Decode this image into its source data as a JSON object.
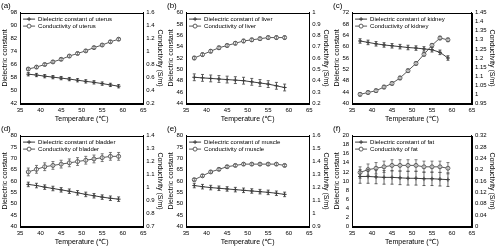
{
  "chart_data": [
    {
      "type": "line",
      "title": "(a)",
      "x_label": "Temperature (℃)",
      "y_label": "Dielectric constant",
      "y2_label": "Conductivity (S/m)",
      "x": [
        37,
        39,
        41,
        43,
        45,
        47,
        49,
        51,
        53,
        55,
        57,
        59
      ],
      "xlim": [
        35,
        65
      ],
      "xticks": [
        35,
        40,
        45,
        50,
        55,
        60,
        65
      ],
      "ylim": [
        42,
        98
      ],
      "yticks": [
        42,
        50,
        58,
        66,
        74,
        82,
        90,
        98
      ],
      "y2lim": [
        0.2,
        1.6
      ],
      "y2ticks": [
        0.2,
        0.4,
        0.6,
        0.8,
        1,
        1.2,
        1.4,
        1.6
      ],
      "grid": false,
      "legend": "upper-left",
      "series": [
        {
          "name": "Dielectric constant of uterus",
          "color": "#3c3c3c",
          "marker": "cross",
          "line_style": "solid",
          "values": [
            60,
            59.5,
            58.8,
            58.2,
            57.6,
            57,
            56.3,
            55.6,
            55,
            54.2,
            53.4,
            52.6
          ],
          "errors": [
            1,
            1,
            1,
            1,
            1,
            1,
            1,
            1,
            1,
            1,
            1,
            1
          ]
        },
        {
          "name": "Conductivity of uterus",
          "color": "#5a5a5a",
          "marker": "circle",
          "line_style": "solid",
          "axis": "y2",
          "values": [
            0.73,
            0.76,
            0.8,
            0.84,
            0.88,
            0.93,
            0.97,
            1.01,
            1.06,
            1.1,
            1.15,
            1.19
          ],
          "errors": [
            0.02,
            0.02,
            0.02,
            0.02,
            0.02,
            0.02,
            0.02,
            0.02,
            0.02,
            0.02,
            0.02,
            0.02
          ]
        }
      ]
    },
    {
      "type": "line",
      "title": "(b)",
      "x_label": "Temperature (℃)",
      "y_label": "Dielectric constant",
      "y2_label": "Conductivity (S/m)",
      "x": [
        37,
        39,
        41,
        43,
        45,
        47,
        49,
        51,
        53,
        55,
        57,
        59
      ],
      "xlim": [
        35,
        65
      ],
      "xticks": [
        35,
        40,
        45,
        50,
        55,
        60,
        65
      ],
      "ylim": [
        44,
        60
      ],
      "yticks": [
        44,
        46,
        48,
        50,
        52,
        54,
        56,
        58,
        60
      ],
      "y2lim": [
        0.2,
        1
      ],
      "y2ticks": [
        0.2,
        0.3,
        0.4,
        0.5,
        0.6,
        0.7,
        0.8,
        0.9,
        1
      ],
      "grid": false,
      "legend": "upper-left",
      "series": [
        {
          "name": "Dielectric constant of liver",
          "color": "#3c3c3c",
          "marker": "cross",
          "line_style": "solid",
          "values": [
            48.6,
            48.5,
            48.4,
            48.3,
            48.2,
            48.1,
            48,
            47.8,
            47.6,
            47.4,
            47.1,
            46.8
          ],
          "errors": [
            0.6,
            0.6,
            0.6,
            0.6,
            0.6,
            0.6,
            0.6,
            0.6,
            0.6,
            0.6,
            0.6,
            0.6
          ]
        },
        {
          "name": "Conductivity of liver",
          "color": "#5a5a5a",
          "marker": "circle",
          "line_style": "solid",
          "axis": "y2",
          "values": [
            0.6,
            0.63,
            0.66,
            0.69,
            0.71,
            0.73,
            0.75,
            0.76,
            0.77,
            0.78,
            0.78,
            0.78
          ],
          "errors": [
            0.015,
            0.015,
            0.015,
            0.015,
            0.015,
            0.015,
            0.015,
            0.015,
            0.015,
            0.015,
            0.015,
            0.015
          ]
        }
      ]
    },
    {
      "type": "line",
      "title": "(c)",
      "x_label": "Temperature (℃)",
      "y_label": "Dielectric constant",
      "y2_label": "Conductivity (S/m)",
      "x": [
        37,
        39,
        41,
        43,
        45,
        47,
        49,
        51,
        53,
        55,
        57,
        59
      ],
      "xlim": [
        35,
        65
      ],
      "xticks": [
        35,
        40,
        45,
        50,
        55,
        60,
        65
      ],
      "ylim": [
        40,
        72
      ],
      "yticks": [
        40,
        44,
        48,
        52,
        56,
        60,
        64,
        68,
        72
      ],
      "y2lim": [
        0.95,
        1.45
      ],
      "y2ticks": [
        0.95,
        1,
        1.05,
        1.1,
        1.15,
        1.2,
        1.25,
        1.3,
        1.35,
        1.4,
        1.45
      ],
      "grid": false,
      "legend": "upper-left",
      "series": [
        {
          "name": "Dielectric constant of kidney",
          "color": "#3c3c3c",
          "marker": "cross",
          "line_style": "solid",
          "values": [
            62,
            61.5,
            61,
            60.6,
            60.3,
            60,
            59.7,
            59.5,
            59.2,
            58.9,
            58,
            56
          ],
          "errors": [
            0.8,
            0.8,
            0.8,
            0.8,
            0.8,
            0.8,
            0.8,
            0.8,
            0.8,
            0.8,
            0.8,
            0.8
          ]
        },
        {
          "name": "Conductivity of kidney",
          "color": "#5a5a5a",
          "marker": "circle",
          "line_style": "solid",
          "axis": "y2",
          "values": [
            1,
            1.01,
            1.02,
            1.04,
            1.06,
            1.09,
            1.13,
            1.17,
            1.22,
            1.27,
            1.31,
            1.3
          ],
          "errors": [
            0.01,
            0.01,
            0.01,
            0.01,
            0.01,
            0.01,
            0.01,
            0.01,
            0.01,
            0.01,
            0.01,
            0.01
          ]
        }
      ]
    },
    {
      "type": "line",
      "title": "(d)",
      "x_label": "Temperature (℃)",
      "y_label": "Dielectric constant",
      "y2_label": "Conductivity (S/m)",
      "x": [
        37,
        39,
        41,
        43,
        45,
        47,
        49,
        51,
        53,
        55,
        57,
        59
      ],
      "xlim": [
        35,
        65
      ],
      "xticks": [
        35,
        40,
        45,
        50,
        55,
        60,
        65
      ],
      "ylim": [
        40,
        80
      ],
      "yticks": [
        40,
        45,
        50,
        55,
        60,
        65,
        70,
        75,
        80
      ],
      "y2lim": [
        0.7,
        1.4
      ],
      "y2ticks": [
        0.7,
        0.8,
        0.9,
        1,
        1.1,
        1.2,
        1.3,
        1.4
      ],
      "grid": false,
      "legend": "upper-left",
      "series": [
        {
          "name": "Dielectric constant of bladder",
          "color": "#3c3c3c",
          "marker": "cross",
          "line_style": "solid",
          "values": [
            58.5,
            58,
            57.3,
            56.7,
            56.1,
            55.5,
            54.8,
            54.1,
            53.5,
            52.9,
            52.4,
            52
          ],
          "errors": [
            1,
            1,
            1,
            1,
            1,
            1,
            1,
            1,
            1,
            1,
            1,
            1
          ]
        },
        {
          "name": "Conductivity of bladder",
          "color": "#5a5a5a",
          "marker": "circle",
          "line_style": "solid",
          "axis": "y2",
          "values": [
            1.12,
            1.14,
            1.16,
            1.17,
            1.18,
            1.19,
            1.2,
            1.21,
            1.22,
            1.23,
            1.24,
            1.24
          ],
          "errors": [
            0.03,
            0.03,
            0.03,
            0.03,
            0.03,
            0.03,
            0.03,
            0.03,
            0.03,
            0.03,
            0.03,
            0.03
          ]
        }
      ]
    },
    {
      "type": "line",
      "title": "(e)",
      "x_label": "Temperature (℃)",
      "y_label": "Dielectric constant",
      "y2_label": "Conductivity (S/m)",
      "x": [
        37,
        39,
        41,
        43,
        45,
        47,
        49,
        51,
        53,
        55,
        57,
        59
      ],
      "xlim": [
        35,
        65
      ],
      "xticks": [
        35,
        40,
        45,
        50,
        55,
        60,
        65
      ],
      "ylim": [
        40,
        80
      ],
      "yticks": [
        40,
        45,
        50,
        55,
        60,
        65,
        70,
        75,
        80
      ],
      "y2lim": [
        0.9,
        1.6
      ],
      "y2ticks": [
        0.9,
        1,
        1.1,
        1.2,
        1.3,
        1.4,
        1.5,
        1.6
      ],
      "grid": false,
      "legend": "upper-left",
      "series": [
        {
          "name": "Dielectric constant of muscle",
          "color": "#3c3c3c",
          "marker": "cross",
          "line_style": "solid",
          "values": [
            58,
            57.5,
            57.1,
            56.8,
            56.5,
            56.2,
            55.9,
            55.6,
            55.3,
            55,
            54.6,
            54.1
          ],
          "errors": [
            1,
            1,
            1,
            1,
            1,
            1,
            1,
            1,
            1,
            1,
            1,
            1
          ]
        },
        {
          "name": "Conductivity of muscle",
          "color": "#5a5a5a",
          "marker": "circle",
          "line_style": "solid",
          "axis": "y2",
          "values": [
            1.26,
            1.29,
            1.32,
            1.34,
            1.36,
            1.37,
            1.38,
            1.38,
            1.38,
            1.38,
            1.38,
            1.37
          ],
          "errors": [
            0.01,
            0.01,
            0.01,
            0.01,
            0.01,
            0.01,
            0.01,
            0.01,
            0.01,
            0.01,
            0.01,
            0.01
          ]
        }
      ]
    },
    {
      "type": "line",
      "title": "(f)",
      "x_label": "Temperature (℃)",
      "y_label": "Dielectric constant",
      "y2_label": "Conductivity (S/m)",
      "x": [
        37,
        39,
        41,
        43,
        45,
        47,
        49,
        51,
        53,
        55,
        57,
        59
      ],
      "xlim": [
        35,
        65
      ],
      "xticks": [
        35,
        40,
        45,
        50,
        55,
        60,
        65
      ],
      "ylim": [
        0,
        20
      ],
      "yticks": [
        0,
        2,
        4,
        6,
        8,
        10,
        12,
        14,
        16,
        18,
        20
      ],
      "y2lim": [
        0,
        0.32
      ],
      "y2ticks": [
        0,
        0.04,
        0.08,
        0.12,
        0.16,
        0.2,
        0.24,
        0.28,
        0.32
      ],
      "grid": false,
      "legend": "upper-left",
      "series": [
        {
          "name": "Dielectric constant of fat",
          "color": "#3c3c3c",
          "marker": "cross",
          "line_style": "solid",
          "values": [
            11,
            11,
            10.9,
            10.8,
            10.8,
            10.7,
            10.6,
            10.6,
            10.5,
            10.5,
            10.4,
            10.3
          ],
          "errors": [
            1.5,
            1.5,
            1.5,
            1.5,
            1.5,
            1.5,
            1.5,
            1.5,
            1.5,
            1.5,
            1.5,
            1.5
          ]
        },
        {
          "name": "Conductivity of fat",
          "color": "#5a5a5a",
          "marker": "circle",
          "line_style": "solid",
          "axis": "y2",
          "values": [
            0.19,
            0.2,
            0.205,
            0.21,
            0.215,
            0.215,
            0.215,
            0.215,
            0.21,
            0.21,
            0.21,
            0.205
          ],
          "errors": [
            0.02,
            0.02,
            0.02,
            0.02,
            0.02,
            0.02,
            0.02,
            0.02,
            0.02,
            0.02,
            0.02,
            0.02
          ]
        }
      ]
    }
  ]
}
